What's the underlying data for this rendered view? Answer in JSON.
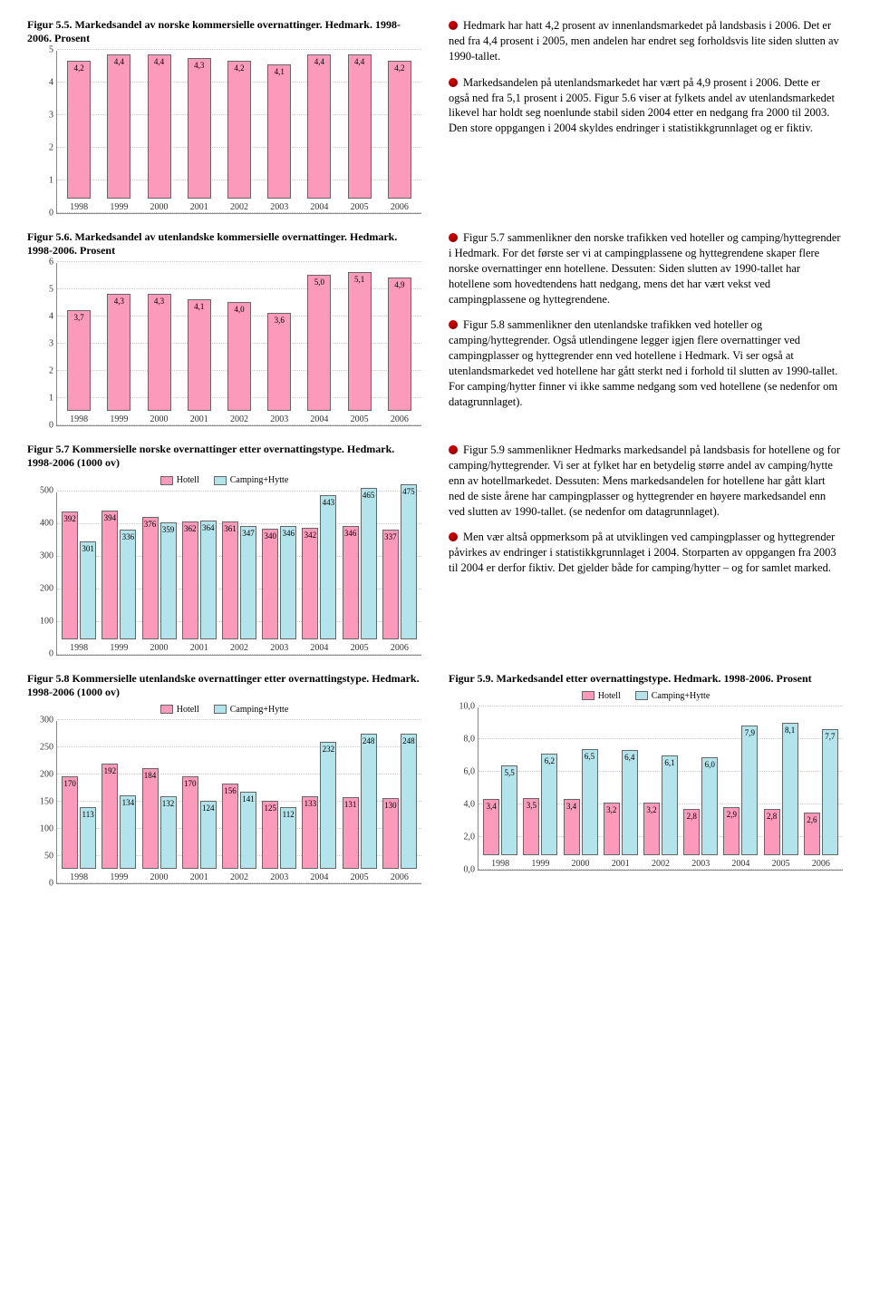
{
  "colors": {
    "pink": "#fb9abb",
    "cyan": "#b3e4ec",
    "bullet": "#c00000",
    "axis": "#888888",
    "grid": "#cccccc",
    "text": "#000000"
  },
  "fig55": {
    "title": "Figur 5.5. Markedsandel av norske kommersielle overnattinger. Hedmark. 1998-2006. Prosent",
    "type": "bar",
    "years": [
      "1998",
      "1999",
      "2000",
      "2001",
      "2002",
      "2003",
      "2004",
      "2005",
      "2006"
    ],
    "values": [
      4.2,
      4.4,
      4.4,
      4.3,
      4.2,
      4.1,
      4.4,
      4.4,
      4.2
    ],
    "ylim": [
      0,
      5
    ],
    "ytick_step": 1.0,
    "bar_color": "#fb9abb"
  },
  "fig56": {
    "title": "Figur 5.6. Markedsandel av utenlandske kommersielle overnattinger. Hedmark. 1998-2006. Prosent",
    "type": "bar",
    "years": [
      "1998",
      "1999",
      "2000",
      "2001",
      "2002",
      "2003",
      "2004",
      "2005",
      "2006"
    ],
    "values": [
      3.7,
      4.3,
      4.3,
      4.1,
      4.0,
      3.6,
      5.0,
      5.1,
      4.9
    ],
    "ylim": [
      0,
      6
    ],
    "ytick_step": 1.0,
    "bar_color": "#fb9abb"
  },
  "fig57": {
    "title": "Figur 5.7 Kommersielle norske overnattinger etter overnattingstype. Hedmark. 1998-2006 (1000 ov)",
    "type": "grouped-bar",
    "legend": [
      "Hotell",
      "Camping+Hytte"
    ],
    "colors": [
      "#fb9abb",
      "#b3e4ec"
    ],
    "years": [
      "1998",
      "1999",
      "2000",
      "2001",
      "2002",
      "2003",
      "2004",
      "2005",
      "2006"
    ],
    "series": [
      [
        392,
        394,
        376,
        362,
        361,
        340,
        342,
        346,
        337
      ],
      [
        301,
        336,
        359,
        364,
        347,
        346,
        443,
        465,
        475
      ]
    ],
    "ylim": [
      0,
      500
    ],
    "ytick_step": 100
  },
  "fig58": {
    "title": "Figur 5.8 Kommersielle utenlandske overnattinger etter overnattingstype. Hedmark. 1998-2006 (1000 ov)",
    "type": "grouped-bar",
    "legend": [
      "Hotell",
      "Camping+Hytte"
    ],
    "colors": [
      "#fb9abb",
      "#b3e4ec"
    ],
    "years": [
      "1998",
      "1999",
      "2000",
      "2001",
      "2002",
      "2003",
      "2004",
      "2005",
      "2006"
    ],
    "series": [
      [
        170,
        192,
        184,
        170,
        156,
        125,
        133,
        131,
        130
      ],
      [
        113,
        134,
        132,
        124,
        141,
        112,
        232,
        248,
        248
      ]
    ],
    "ylim": [
      0,
      300
    ],
    "ytick_step": 50
  },
  "fig59": {
    "title": "Figur 5.9. Markedsandel etter overnattingstype. Hedmark. 1998-2006. Prosent",
    "type": "grouped-bar",
    "legend": [
      "Hotell",
      "Camping+Hytte"
    ],
    "colors": [
      "#fb9abb",
      "#b3e4ec"
    ],
    "years": [
      "1998",
      "1999",
      "2000",
      "2001",
      "2002",
      "2003",
      "2004",
      "2005",
      "2006"
    ],
    "series": [
      [
        3.4,
        3.5,
        3.4,
        3.2,
        3.2,
        2.8,
        2.9,
        2.8,
        2.6
      ],
      [
        5.5,
        6.2,
        6.5,
        6.4,
        6.1,
        6.0,
        7.9,
        8.1,
        7.7
      ]
    ],
    "ylim": [
      0,
      10
    ],
    "ytick_step": 2.0
  },
  "text": {
    "p1": "Hedmark har hatt 4,2 prosent av innenlandsmarkedet på landsbasis i 2006. Det er ned fra 4,4 prosent i 2005, men andelen har endret seg forholdsvis lite siden slutten av 1990-tallet.",
    "p2": "Markedsandelen på utenlandsmarkedet har vært på 4,9 prosent i 2006. Dette er også ned fra 5,1 prosent i 2005. Figur 5.6 viser at fylkets andel av utenlandsmarkedet likevel har holdt seg noenlunde stabil siden 2004 etter en nedgang fra 2000 til 2003. Den store oppgangen i 2004 skyldes endringer i statistikkgrunnlaget og er fiktiv.",
    "p3": "Figur 5.7 sammenlikner den norske trafikken ved hoteller og camping/hyttegrender i Hedmark. For det første ser vi at campingplassene og hyttegrendene skaper flere norske overnattinger enn hotellene. Dessuten: Siden slutten av 1990-tallet har hotellene som hovedtendens hatt nedgang, mens det har vært vekst ved campingplassene og hyttegrendene.",
    "p4": "Figur 5.8 sammenlikner den utenlandske trafikken ved hoteller og camping/hyttegrender. Også utlendingene legger igjen flere overnattinger ved campingplasser og hyttegrender enn ved hotellene i Hedmark. Vi ser også at utenlandsmarkedet ved hotellene har gått sterkt ned i forhold til slutten av 1990-tallet. For camping/hytter finner vi ikke samme nedgang som ved hotellene (se nedenfor om datagrunnlaget).",
    "p5": "Figur 5.9 sammenlikner Hedmarks markedsandel på landsbasis for hotellene og for camping/hyttegrender. Vi ser at fylket har en betydelig større andel av camping/hytte enn av hotellmarkedet. Dessuten: Mens markedsandelen for hotellene har gått klart ned de siste årene har campingplasser og hyttegrender en høyere markedsandel enn ved slutten av 1990-tallet. (se nedenfor om datagrunnlaget).",
    "p6": "Men vær altså oppmerksom på at utviklingen ved campingplasser og hyttegrender påvirkes av endringer i statistikkgrunnlaget i 2004. Storparten av oppgangen fra 2003 til 2004 er derfor fiktiv. Det gjelder både for camping/hytter – og for samlet marked."
  }
}
